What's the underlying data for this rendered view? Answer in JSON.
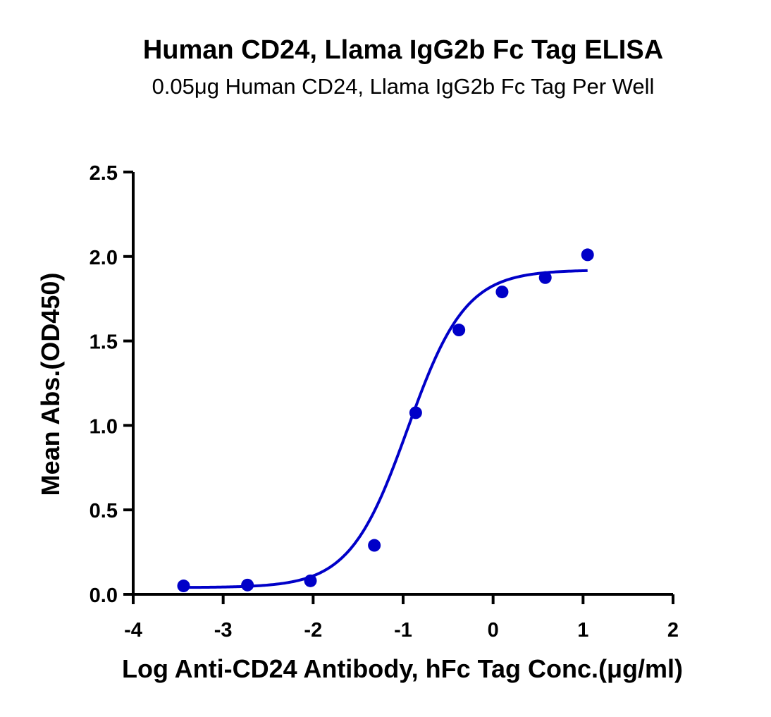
{
  "chart_data": {
    "type": "scatter",
    "title": "Human CD24, Llama IgG2b Fc Tag ELISA",
    "subtitle": "0.05μg Human CD24, Llama IgG2b Fc Tag Per Well",
    "xlabel": "Log Anti-CD24 Antibody, hFc Tag Conc.(μg/ml)",
    "ylabel": "Mean Abs.(OD450)",
    "xlim": [
      -4,
      2
    ],
    "ylim": [
      0,
      2.5
    ],
    "x_ticks": [
      "-4",
      "-3",
      "-2",
      "-1",
      "0",
      "1",
      "2"
    ],
    "y_ticks": [
      "0.0",
      "0.5",
      "1.0",
      "1.5",
      "2.0",
      "2.5"
    ],
    "grid": false,
    "legend": false,
    "color": "#0000c8",
    "points": {
      "x": [
        -3.44,
        -2.73,
        -2.03,
        -1.32,
        -0.86,
        -0.38,
        0.1,
        0.58,
        1.05
      ],
      "y": [
        0.05,
        0.055,
        0.08,
        0.29,
        1.075,
        1.565,
        1.79,
        1.875,
        2.01
      ]
    },
    "fit": {
      "model": "four-parameter logistic",
      "bottom": 0.04,
      "top": 1.92,
      "log_ec50": -0.95,
      "hill": 1.35,
      "x_range": [
        -3.44,
        1.05
      ]
    }
  }
}
